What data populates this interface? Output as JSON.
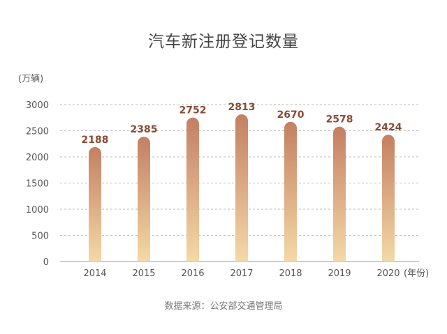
{
  "chart_data": {
    "type": "bar",
    "title": "汽车新注册登记数量",
    "ylabel": "(万辆)",
    "xlabel": "(年份)",
    "categories": [
      "2014",
      "2015",
      "2016",
      "2017",
      "2018",
      "2019",
      "2020"
    ],
    "values": [
      2188,
      2385,
      2752,
      2813,
      2670,
      2578,
      2424
    ],
    "ylim": [
      0,
      3000
    ],
    "yticks": [
      0,
      500,
      1000,
      1500,
      2000,
      2500,
      3000
    ],
    "grid": true,
    "bar_color_top": "#c47f63",
    "bar_color_bottom": "#f4d9a6",
    "value_label_color": "#8a4a33",
    "source": "数据来源：公安部交通管理局"
  }
}
